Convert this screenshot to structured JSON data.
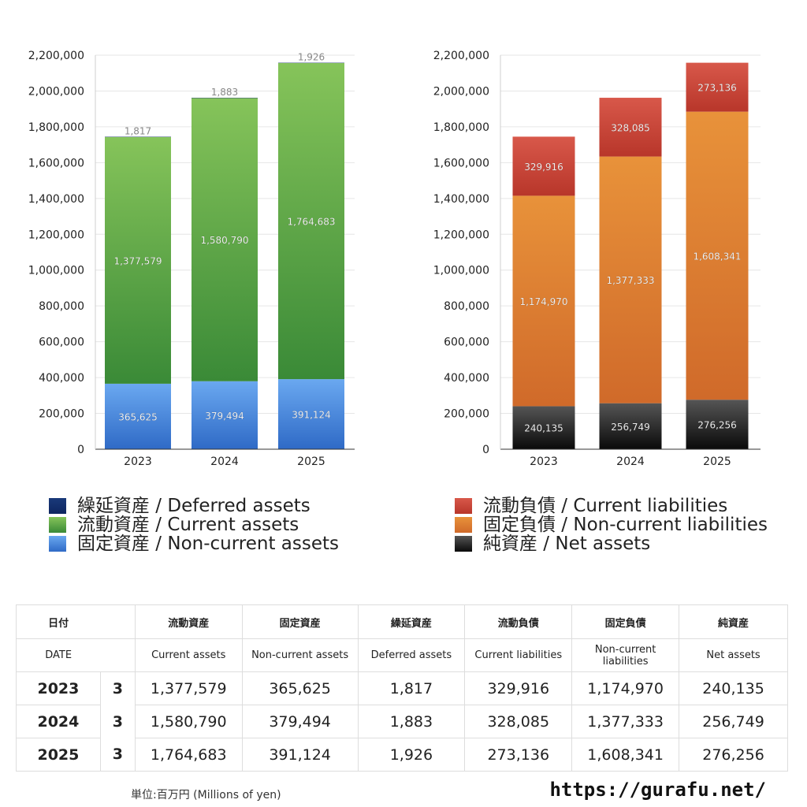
{
  "chart_data": [
    {
      "type": "bar",
      "stacked": true,
      "categories": [
        "2023",
        "2024",
        "2025"
      ],
      "ylim": [
        0,
        2200000
      ],
      "yticks": [
        "0",
        "200,000",
        "400,000",
        "600,000",
        "800,000",
        "1,000,000",
        "1,200,000",
        "1,400,000",
        "1,600,000",
        "1,800,000",
        "2,000,000",
        "2,200,000"
      ],
      "grid": true,
      "series": [
        {
          "name": "固定資産 / Non-current assets",
          "key": "noncurrent_assets",
          "values": [
            365625,
            379494,
            391124
          ],
          "labels": [
            "365,625",
            "379,494",
            "391,124"
          ],
          "color_top": "#6aa8f0",
          "color_bottom": "#2f6ac6"
        },
        {
          "name": "流動資産 / Current assets",
          "key": "current_assets",
          "values": [
            1377579,
            1580790,
            1764683
          ],
          "labels": [
            "1,377,579",
            "1,580,790",
            "1,764,683"
          ],
          "color_top": "#86c45a",
          "color_bottom": "#3a8a37"
        },
        {
          "name": "繰延資産 / Deferred assets",
          "key": "deferred_assets",
          "values": [
            1817,
            1883,
            1926
          ],
          "labels": [
            "1,817",
            "1,883",
            "1,926"
          ],
          "color_top": "#1a3a7a",
          "color_bottom": "#0e2660"
        }
      ]
    },
    {
      "type": "bar",
      "stacked": true,
      "categories": [
        "2023",
        "2024",
        "2025"
      ],
      "ylim": [
        0,
        2200000
      ],
      "yticks": [
        "0",
        "200,000",
        "400,000",
        "600,000",
        "800,000",
        "1,000,000",
        "1,200,000",
        "1,400,000",
        "1,600,000",
        "1,800,000",
        "2,000,000",
        "2,200,000"
      ],
      "grid": true,
      "series": [
        {
          "name": "純資産 / Net assets",
          "key": "net_assets",
          "values": [
            240135,
            256749,
            276256
          ],
          "labels": [
            "240,135",
            "256,749",
            "276,256"
          ],
          "color_top": "#555555",
          "color_bottom": "#0a0a0a"
        },
        {
          "name": "固定負債 / Non-current liabilities",
          "key": "noncurrent_liabilities",
          "values": [
            1174970,
            1377333,
            1608341
          ],
          "labels": [
            "1,174,970",
            "1,377,333",
            "1,608,341"
          ],
          "color_top": "#e8923a",
          "color_bottom": "#d06a2a"
        },
        {
          "name": "流動負債 / Current liabilities",
          "key": "current_liabilities",
          "values": [
            329916,
            328085,
            273136
          ],
          "labels": [
            "329,916",
            "328,085",
            "273,136"
          ],
          "color_top": "#d8584a",
          "color_bottom": "#b8362a"
        }
      ]
    }
  ],
  "legend_left": [
    {
      "label": "繰延資産 / Deferred assets",
      "color_top": "#1a3a7a",
      "color_bottom": "#0e2660"
    },
    {
      "label": "流動資産 / Current assets",
      "color_top": "#86c45a",
      "color_bottom": "#3a8a37"
    },
    {
      "label": "固定資産 / Non-current assets",
      "color_top": "#6aa8f0",
      "color_bottom": "#2f6ac6"
    }
  ],
  "legend_right": [
    {
      "label": "流動負債 / Current liabilities",
      "color_top": "#d8584a",
      "color_bottom": "#b8362a"
    },
    {
      "label": "固定負債 / Non-current liabilities",
      "color_top": "#e8923a",
      "color_bottom": "#d06a2a"
    },
    {
      "label": "純資産 / Net assets",
      "color_top": "#555555",
      "color_bottom": "#0a0a0a"
    }
  ],
  "table": {
    "header_jp": [
      "日付",
      "",
      "流動資産",
      "固定資産",
      "繰延資産",
      "流動負債",
      "固定負債",
      "純資産"
    ],
    "header_en": [
      "DATE",
      "",
      "Current assets",
      "Non-current assets",
      "Deferred assets",
      "Current liabilities",
      "Non-current liabilities",
      "Net assets"
    ],
    "rows": [
      {
        "year": "2023",
        "month": "3",
        "values": [
          "1,377,579",
          "365,625",
          "1,817",
          "329,916",
          "1,174,970",
          "240,135"
        ]
      },
      {
        "year": "2024",
        "month": "3",
        "values": [
          "1,580,790",
          "379,494",
          "1,883",
          "328,085",
          "1,377,333",
          "256,749"
        ]
      },
      {
        "year": "2025",
        "month": "3",
        "values": [
          "1,764,683",
          "391,124",
          "1,926",
          "273,136",
          "1,608,341",
          "276,256"
        ]
      }
    ]
  },
  "footer": {
    "unit": "単位:百万円 (Millions of yen)",
    "url": "https://gurafu.net/"
  }
}
